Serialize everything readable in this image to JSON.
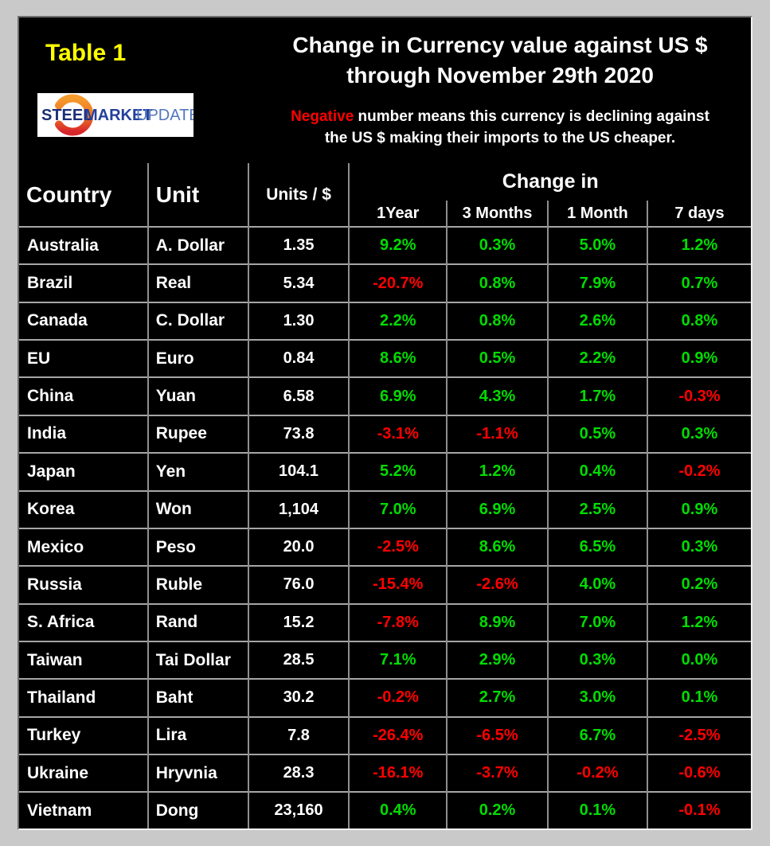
{
  "frame": {
    "table_label": "Table 1"
  },
  "logo": {
    "word1": "STEEL",
    "word2": "MARKET",
    "word3": "UPDATE"
  },
  "header": {
    "title_line1": "Change in Currency value against US $",
    "title_line2": "through November 29th  2020",
    "note_highlight": "Negative",
    "note_rest_line1": " number means this currency is declining against",
    "note_line2": "the US $ making their imports to the US cheaper."
  },
  "table": {
    "col_headers": {
      "country": "Country",
      "unit": "Unit",
      "units_per_dollar": "Units / $",
      "change_in": "Change in",
      "sub": [
        "1Year",
        "3 Months",
        "1 Month",
        "7 days"
      ]
    },
    "rows": [
      {
        "country": "Australia",
        "unit": "A. Dollar",
        "units_per_dollar": "1.35",
        "changes": [
          "9.2%",
          "0.3%",
          "5.0%",
          "1.2%"
        ]
      },
      {
        "country": "Brazil",
        "unit": "Real",
        "units_per_dollar": "5.34",
        "changes": [
          "-20.7%",
          "0.8%",
          "7.9%",
          "0.7%"
        ]
      },
      {
        "country": "Canada",
        "unit": "C. Dollar",
        "units_per_dollar": "1.30",
        "changes": [
          "2.2%",
          "0.8%",
          "2.6%",
          "0.8%"
        ]
      },
      {
        "country": "EU",
        "unit": "Euro",
        "units_per_dollar": "0.84",
        "changes": [
          "8.6%",
          "0.5%",
          "2.2%",
          "0.9%"
        ]
      },
      {
        "country": "China",
        "unit": "Yuan",
        "units_per_dollar": "6.58",
        "changes": [
          "6.9%",
          "4.3%",
          "1.7%",
          "-0.3%"
        ]
      },
      {
        "country": "India",
        "unit": "Rupee",
        "units_per_dollar": "73.8",
        "changes": [
          "-3.1%",
          "-1.1%",
          "0.5%",
          "0.3%"
        ]
      },
      {
        "country": "Japan",
        "unit": "Yen",
        "units_per_dollar": "104.1",
        "changes": [
          "5.2%",
          "1.2%",
          "0.4%",
          "-0.2%"
        ]
      },
      {
        "country": "Korea",
        "unit": "Won",
        "units_per_dollar": "1,104",
        "changes": [
          "7.0%",
          "6.9%",
          "2.5%",
          "0.9%"
        ]
      },
      {
        "country": "Mexico",
        "unit": "Peso",
        "units_per_dollar": "20.0",
        "changes": [
          "-2.5%",
          "8.6%",
          "6.5%",
          "0.3%"
        ]
      },
      {
        "country": "Russia",
        "unit": "Ruble",
        "units_per_dollar": "76.0",
        "changes": [
          "-15.4%",
          "-2.6%",
          "4.0%",
          "0.2%"
        ]
      },
      {
        "country": "S. Africa",
        "unit": "Rand",
        "units_per_dollar": "15.2",
        "changes": [
          "-7.8%",
          "8.9%",
          "7.0%",
          "1.2%"
        ]
      },
      {
        "country": "Taiwan",
        "unit": "Tai Dollar",
        "units_per_dollar": "28.5",
        "changes": [
          "7.1%",
          "2.9%",
          "0.3%",
          "0.0%"
        ]
      },
      {
        "country": "Thailand",
        "unit": "Baht",
        "units_per_dollar": "30.2",
        "changes": [
          "-0.2%",
          "2.7%",
          "3.0%",
          "0.1%"
        ]
      },
      {
        "country": "Turkey",
        "unit": "Lira",
        "units_per_dollar": "7.8",
        "changes": [
          "-26.4%",
          "-6.5%",
          "6.7%",
          "-2.5%"
        ]
      },
      {
        "country": "Ukraine",
        "unit": "Hryvnia",
        "units_per_dollar": "28.3",
        "changes": [
          "-16.1%",
          "-3.7%",
          "-0.2%",
          "-0.6%"
        ]
      },
      {
        "country": "Vietnam",
        "unit": "Dong",
        "units_per_dollar": "23,160",
        "changes": [
          "0.4%",
          "0.2%",
          "0.1%",
          "-0.1%"
        ]
      }
    ]
  },
  "colors": {
    "positive": "#00dd00",
    "negative": "#ff0000",
    "accent_yellow": "#ffff00",
    "panel_background": "#000000",
    "surround_background": "#c9c9c9"
  },
  "chart_data": {
    "type": "table",
    "title": "Change in Currency value against US $ through November 29th 2020",
    "note": "Negative number means this currency is declining against the US $ making their imports to the US cheaper.",
    "columns": [
      "Country",
      "Unit",
      "Units / $",
      "Change in 1Year (%)",
      "Change in 3 Months (%)",
      "Change in 1 Month (%)",
      "Change in 7 days (%)"
    ],
    "rows": [
      [
        "Australia",
        "A. Dollar",
        1.35,
        9.2,
        0.3,
        5.0,
        1.2
      ],
      [
        "Brazil",
        "Real",
        5.34,
        -20.7,
        0.8,
        7.9,
        0.7
      ],
      [
        "Canada",
        "C. Dollar",
        1.3,
        2.2,
        0.8,
        2.6,
        0.8
      ],
      [
        "EU",
        "Euro",
        0.84,
        8.6,
        0.5,
        2.2,
        0.9
      ],
      [
        "China",
        "Yuan",
        6.58,
        6.9,
        4.3,
        1.7,
        -0.3
      ],
      [
        "India",
        "Rupee",
        73.8,
        -3.1,
        -1.1,
        0.5,
        0.3
      ],
      [
        "Japan",
        "Yen",
        104.1,
        5.2,
        1.2,
        0.4,
        -0.2
      ],
      [
        "Korea",
        "Won",
        1104,
        7.0,
        6.9,
        2.5,
        0.9
      ],
      [
        "Mexico",
        "Peso",
        20.0,
        -2.5,
        8.6,
        6.5,
        0.3
      ],
      [
        "Russia",
        "Ruble",
        76.0,
        -15.4,
        -2.6,
        4.0,
        0.2
      ],
      [
        "S. Africa",
        "Rand",
        15.2,
        -7.8,
        8.9,
        7.0,
        1.2
      ],
      [
        "Taiwan",
        "Tai Dollar",
        28.5,
        7.1,
        2.9,
        0.3,
        0.0
      ],
      [
        "Thailand",
        "Baht",
        30.2,
        -0.2,
        2.7,
        3.0,
        0.1
      ],
      [
        "Turkey",
        "Lira",
        7.8,
        -26.4,
        -6.5,
        6.7,
        -2.5
      ],
      [
        "Ukraine",
        "Hryvnia",
        28.3,
        -16.1,
        -3.7,
        -0.2,
        -0.6
      ],
      [
        "Vietnam",
        "Dong",
        23160,
        0.4,
        0.2,
        0.1,
        -0.1
      ]
    ],
    "color_coding": {
      "positive_values": "green",
      "negative_values": "red"
    },
    "legend_position": "none",
    "grid": true
  }
}
